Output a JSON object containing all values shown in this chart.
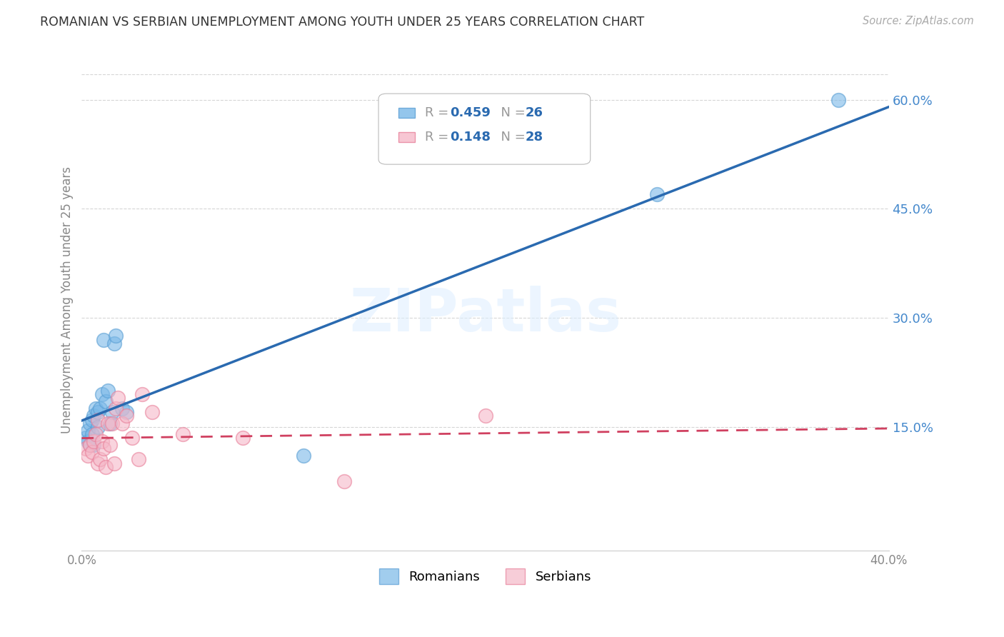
{
  "title": "ROMANIAN VS SERBIAN UNEMPLOYMENT AMONG YOUTH UNDER 25 YEARS CORRELATION CHART",
  "source": "Source: ZipAtlas.com",
  "ylabel": "Unemployment Among Youth under 25 years",
  "xlim": [
    0.0,
    0.4
  ],
  "ylim": [
    -0.02,
    0.67
  ],
  "xticks": [
    0.0,
    0.05,
    0.1,
    0.15,
    0.2,
    0.25,
    0.3,
    0.35,
    0.4
  ],
  "xtick_labels": [
    "0.0%",
    "",
    "",
    "",
    "",
    "",
    "",
    "",
    "40.0%"
  ],
  "ytick_labels_right": [
    "60.0%",
    "45.0%",
    "30.0%",
    "15.0%"
  ],
  "yticks_right": [
    0.6,
    0.45,
    0.3,
    0.15
  ],
  "romanians_x": [
    0.002,
    0.003,
    0.003,
    0.004,
    0.004,
    0.005,
    0.005,
    0.006,
    0.006,
    0.007,
    0.008,
    0.008,
    0.009,
    0.01,
    0.011,
    0.012,
    0.013,
    0.014,
    0.015,
    0.016,
    0.017,
    0.02,
    0.022,
    0.11,
    0.285,
    0.375
  ],
  "romanians_y": [
    0.135,
    0.13,
    0.145,
    0.125,
    0.155,
    0.14,
    0.16,
    0.125,
    0.165,
    0.175,
    0.15,
    0.17,
    0.175,
    0.195,
    0.27,
    0.185,
    0.2,
    0.155,
    0.17,
    0.265,
    0.275,
    0.175,
    0.17,
    0.11,
    0.47,
    0.6
  ],
  "serbians_x": [
    0.002,
    0.003,
    0.004,
    0.005,
    0.006,
    0.007,
    0.008,
    0.008,
    0.009,
    0.01,
    0.011,
    0.012,
    0.013,
    0.014,
    0.015,
    0.016,
    0.017,
    0.018,
    0.02,
    0.022,
    0.025,
    0.028,
    0.03,
    0.035,
    0.05,
    0.08,
    0.13,
    0.2
  ],
  "serbians_y": [
    0.12,
    0.11,
    0.125,
    0.115,
    0.13,
    0.14,
    0.1,
    0.16,
    0.105,
    0.13,
    0.12,
    0.095,
    0.155,
    0.125,
    0.155,
    0.1,
    0.175,
    0.19,
    0.155,
    0.165,
    0.135,
    0.105,
    0.195,
    0.17,
    0.14,
    0.135,
    0.075,
    0.165
  ],
  "R_romanian": 0.459,
  "N_romanian": 26,
  "R_serbian": 0.148,
  "N_serbian": 28,
  "romanian_color": "#7ab8e8",
  "romanian_edge": "#5a9fd4",
  "serbian_color": "#f5b8c8",
  "serbian_edge": "#e8809a",
  "trendline_romanian_color": "#2a6ab0",
  "trendline_serbian_color": "#d04060",
  "watermark": "ZIPatlas",
  "background_color": "#ffffff",
  "grid_color": "#cccccc",
  "right_axis_color": "#4488cc"
}
